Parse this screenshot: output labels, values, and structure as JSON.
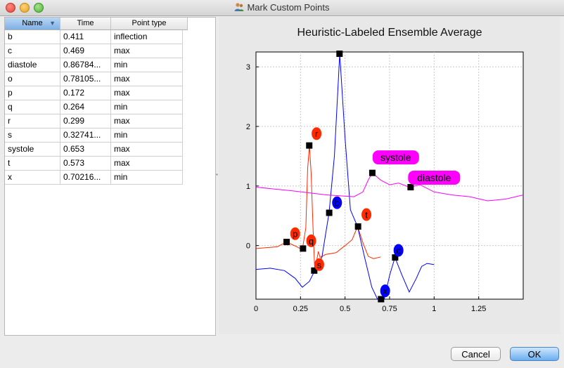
{
  "window": {
    "title": "Mark Custom Points"
  },
  "table": {
    "columns": [
      "Name",
      "Time",
      "Point type"
    ],
    "rows": [
      {
        "name": "b",
        "time": "0.411",
        "type": "inflection"
      },
      {
        "name": "c",
        "time": "0.469",
        "type": "max"
      },
      {
        "name": "diastole",
        "time": "0.86784...",
        "type": "min"
      },
      {
        "name": "o",
        "time": "0.78105...",
        "type": "max"
      },
      {
        "name": "p",
        "time": "0.172",
        "type": "max"
      },
      {
        "name": "q",
        "time": "0.264",
        "type": "min"
      },
      {
        "name": "r",
        "time": "0.299",
        "type": "max"
      },
      {
        "name": "s",
        "time": "0.32741...",
        "type": "min"
      },
      {
        "name": "systole",
        "time": "0.653",
        "type": "max"
      },
      {
        "name": "t",
        "time": "0.573",
        "type": "max"
      },
      {
        "name": "x",
        "time": "0.70216...",
        "type": "min"
      }
    ]
  },
  "buttons": {
    "cancel": "Cancel",
    "ok": "OK"
  },
  "chart_data": {
    "type": "line",
    "title": "Heuristic-Labeled Ensemble Average",
    "xlabel": "",
    "ylabel": "",
    "xlim": [
      0,
      1.5
    ],
    "ylim": [
      -0.9,
      3.25
    ],
    "xticks": [
      "0",
      "0.25",
      "0.5",
      "0.75",
      "1",
      "1.25"
    ],
    "yticks": [
      "0",
      "1",
      "2",
      "3"
    ],
    "grid": true,
    "colors": {
      "red": "#ff2a00",
      "blue": "#0000ff",
      "magenta": "#ff00ff",
      "marker": "#000000"
    },
    "series": [
      {
        "color": "red",
        "points": [
          [
            0.0,
            -0.05
          ],
          [
            0.12,
            -0.02
          ],
          [
            0.17,
            0.06
          ],
          [
            0.2,
            0.02
          ],
          [
            0.23,
            -0.02
          ],
          [
            0.26,
            -0.07
          ],
          [
            0.28,
            0.3
          ],
          [
            0.29,
            1.3
          ],
          [
            0.3,
            1.68
          ],
          [
            0.31,
            1.2
          ],
          [
            0.32,
            0.3
          ],
          [
            0.33,
            -0.42
          ],
          [
            0.35,
            -0.1
          ],
          [
            0.36,
            -0.2
          ],
          [
            0.39,
            -0.15
          ],
          [
            0.45,
            -0.12
          ],
          [
            0.5,
            0.0
          ],
          [
            0.54,
            0.1
          ],
          [
            0.57,
            0.32
          ],
          [
            0.6,
            0.05
          ],
          [
            0.63,
            -0.18
          ],
          [
            0.66,
            -0.22
          ],
          [
            0.7,
            -0.19
          ]
        ]
      },
      {
        "color": "blue",
        "points": [
          [
            0.0,
            -0.4
          ],
          [
            0.08,
            -0.38
          ],
          [
            0.16,
            -0.42
          ],
          [
            0.22,
            -0.55
          ],
          [
            0.26,
            -0.7
          ],
          [
            0.3,
            -0.6
          ],
          [
            0.33,
            -0.42
          ],
          [
            0.37,
            -0.2
          ],
          [
            0.41,
            0.55
          ],
          [
            0.44,
            1.5
          ],
          [
            0.47,
            3.22
          ],
          [
            0.5,
            1.8
          ],
          [
            0.53,
            0.6
          ],
          [
            0.57,
            0.32
          ],
          [
            0.61,
            -0.2
          ],
          [
            0.65,
            -0.7
          ],
          [
            0.69,
            -0.95
          ],
          [
            0.72,
            -0.9
          ],
          [
            0.75,
            -0.5
          ],
          [
            0.78,
            -0.2
          ],
          [
            0.82,
            -0.5
          ],
          [
            0.86,
            -0.78
          ],
          [
            0.9,
            -0.55
          ],
          [
            0.93,
            -0.35
          ],
          [
            0.96,
            -0.3
          ],
          [
            1.0,
            -0.32
          ]
        ]
      },
      {
        "color": "magenta",
        "points": [
          [
            0.0,
            0.98
          ],
          [
            0.2,
            0.92
          ],
          [
            0.4,
            0.85
          ],
          [
            0.55,
            0.82
          ],
          [
            0.6,
            0.9
          ],
          [
            0.63,
            1.1
          ],
          [
            0.653,
            1.22
          ],
          [
            0.7,
            1.1
          ],
          [
            0.75,
            1.02
          ],
          [
            0.8,
            1.05
          ],
          [
            0.86,
            0.98
          ],
          [
            0.92,
            1.02
          ],
          [
            1.0,
            0.9
          ],
          [
            1.1,
            0.85
          ],
          [
            1.2,
            0.82
          ],
          [
            1.3,
            0.75
          ],
          [
            1.4,
            0.78
          ],
          [
            1.5,
            0.85
          ]
        ]
      }
    ],
    "markers": [
      {
        "x": 0.172,
        "y": 0.06
      },
      {
        "x": 0.264,
        "y": -0.05
      },
      {
        "x": 0.299,
        "y": 1.68
      },
      {
        "x": 0.327,
        "y": -0.42
      },
      {
        "x": 0.411,
        "y": 0.55
      },
      {
        "x": 0.469,
        "y": 3.22
      },
      {
        "x": 0.573,
        "y": 0.32
      },
      {
        "x": 0.653,
        "y": 1.22
      },
      {
        "x": 0.702,
        "y": -0.9
      },
      {
        "x": 0.781,
        "y": -0.2
      },
      {
        "x": 0.868,
        "y": 0.98
      }
    ],
    "labels": [
      {
        "text": "r",
        "x": 0.34,
        "y": 1.88,
        "color": "red",
        "shape": "circle"
      },
      {
        "text": "p",
        "x": 0.22,
        "y": 0.2,
        "color": "red",
        "shape": "circle"
      },
      {
        "text": "q",
        "x": 0.31,
        "y": 0.08,
        "color": "red",
        "shape": "circle"
      },
      {
        "text": "s",
        "x": 0.355,
        "y": -0.32,
        "color": "red",
        "shape": "circle"
      },
      {
        "text": "t",
        "x": 0.62,
        "y": 0.52,
        "color": "red",
        "shape": "circle"
      },
      {
        "text": "b",
        "x": 0.455,
        "y": 0.72,
        "color": "blue",
        "shape": "circle"
      },
      {
        "text": "c",
        "x": 0.8,
        "y": -0.08,
        "color": "blue",
        "shape": "circle"
      },
      {
        "text": "x",
        "x": 0.725,
        "y": -0.76,
        "color": "blue",
        "shape": "circle"
      },
      {
        "text": "systole",
        "x": 0.785,
        "y": 1.48,
        "color": "magenta",
        "shape": "pill"
      },
      {
        "text": "diastole",
        "x": 1.0,
        "y": 1.14,
        "color": "magenta",
        "shape": "pill"
      }
    ]
  }
}
